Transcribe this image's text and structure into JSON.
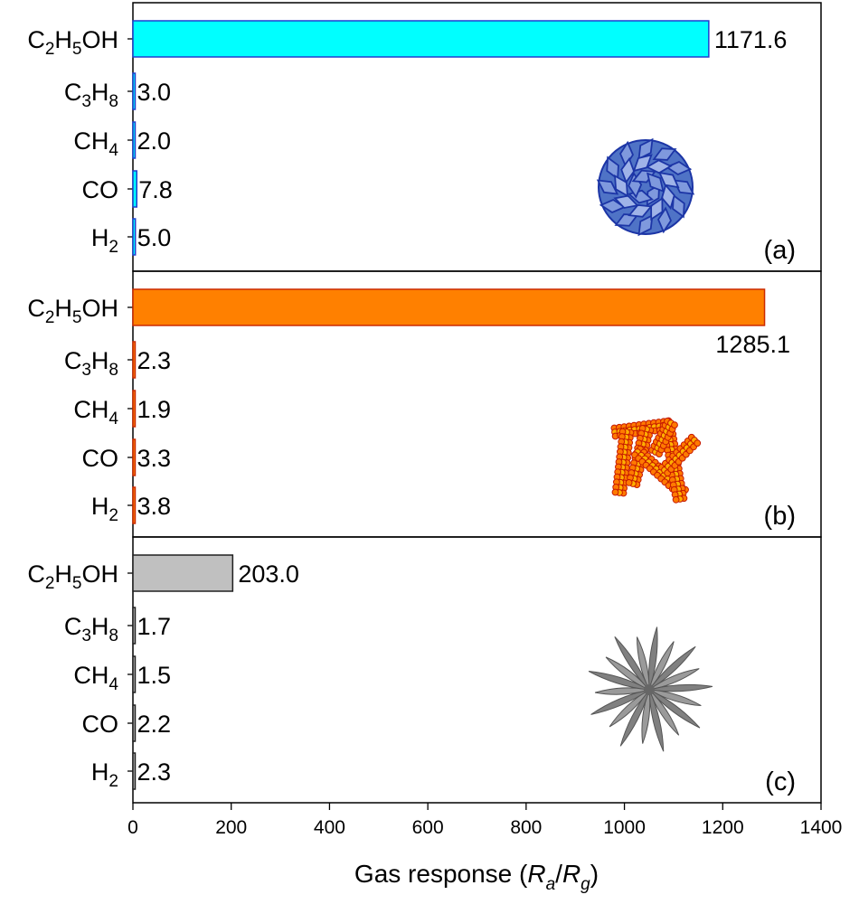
{
  "chart_data": {
    "type": "bar",
    "orientation": "horizontal",
    "xlabel_parts": {
      "prefix": "Gas response (",
      "a": "R",
      "a_sub": "a",
      "slash": "/",
      "g": "R",
      "g_sub": "g",
      "suffix": ")"
    },
    "xlim": [
      0,
      1400
    ],
    "xticks": [
      0,
      200,
      400,
      600,
      800,
      1000,
      1200,
      1400
    ],
    "categories": [
      {
        "id": "c2h5oh",
        "base1": "C",
        "sub1": "2",
        "base2": "H",
        "sub2": "5",
        "base3": "OH"
      },
      {
        "id": "c3h8",
        "base1": "C",
        "sub1": "3",
        "base2": "H",
        "sub2": "8",
        "base3": ""
      },
      {
        "id": "ch4",
        "base1": "CH",
        "sub1": "4",
        "base2": "",
        "sub2": "",
        "base3": ""
      },
      {
        "id": "co",
        "base1": "CO",
        "sub1": "",
        "base2": "",
        "sub2": "",
        "base3": ""
      },
      {
        "id": "h2",
        "base1": "H",
        "sub1": "2",
        "base2": "",
        "sub2": "",
        "base3": ""
      }
    ],
    "panels": [
      {
        "label": "(a)",
        "values": [
          1171.6,
          3.0,
          2.0,
          7.8,
          5.0
        ],
        "value_labels": [
          "1171.6",
          "3.0",
          "2.0",
          "7.8",
          "5.0"
        ],
        "fill": "#00ffff",
        "stroke": "#1f3fcf",
        "icon": "nanoflower-plates-icon"
      },
      {
        "label": "(b)",
        "values": [
          1285.1,
          2.3,
          1.9,
          3.3,
          3.8
        ],
        "value_labels": [
          "1285.1",
          "2.3",
          "1.9",
          "3.3",
          "3.8"
        ],
        "fill": "#ff8000",
        "stroke": "#cc2a00",
        "icon": "nanorod-particles-icon"
      },
      {
        "label": "(c)",
        "values": [
          203.0,
          1.7,
          1.5,
          2.2,
          2.3
        ],
        "value_labels": [
          "203.0",
          "1.7",
          "1.5",
          "2.2",
          "2.3"
        ],
        "fill": "#c0c0c0",
        "stroke": "#202020",
        "icon": "needle-star-icon"
      }
    ]
  }
}
